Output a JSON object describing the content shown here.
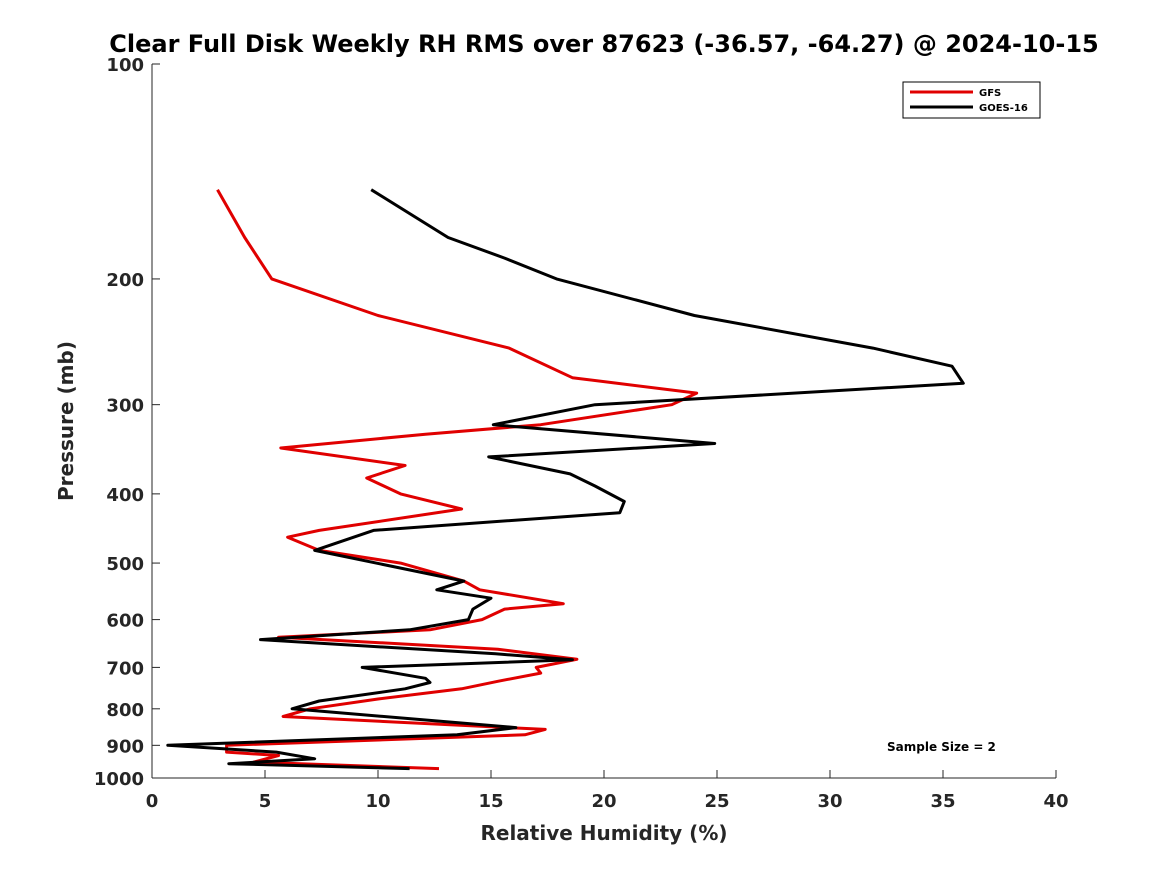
{
  "chart_data": {
    "type": "line",
    "title": "Clear Full Disk Weekly RH RMS over 87623 (-36.57, -64.27) @ 2024-10-15",
    "xlabel": "Relative Humidity (%)",
    "ylabel": "Pressure (mb)",
    "xlim": [
      0,
      40
    ],
    "ylim": [
      100,
      1000
    ],
    "y_scale": "log",
    "y_reversed": true,
    "grid": false,
    "legend_position": "top-right",
    "x_ticks": [
      0,
      5,
      10,
      15,
      20,
      25,
      30,
      35,
      40
    ],
    "y_ticks": [
      100,
      200,
      300,
      400,
      500,
      600,
      700,
      800,
      900,
      1000
    ],
    "annotation": "Sample Size = 2",
    "series": [
      {
        "name": "GFS",
        "color": "#e00000",
        "points": [
          [
            2.9,
            150
          ],
          [
            4.1,
            175
          ],
          [
            5.3,
            200
          ],
          [
            10,
            225
          ],
          [
            15.8,
            250
          ],
          [
            18.6,
            275
          ],
          [
            24.1,
            289
          ],
          [
            23.0,
            300
          ],
          [
            17.2,
            320
          ],
          [
            12.1,
            330
          ],
          [
            5.7,
            345
          ],
          [
            11.2,
            365
          ],
          [
            9.5,
            380
          ],
          [
            11.0,
            400
          ],
          [
            13.7,
            420
          ],
          [
            7.4,
            450
          ],
          [
            6.0,
            460
          ],
          [
            7.4,
            480
          ],
          [
            11.0,
            500
          ],
          [
            13.8,
            530
          ],
          [
            14.5,
            545
          ],
          [
            18.2,
            570
          ],
          [
            15.6,
            580
          ],
          [
            14.6,
            600
          ],
          [
            12.3,
            620
          ],
          [
            5.6,
            635
          ],
          [
            15.3,
            660
          ],
          [
            18.8,
            682
          ],
          [
            17.0,
            700
          ],
          [
            17.2,
            713
          ],
          [
            15.3,
            732
          ],
          [
            13.7,
            750
          ],
          [
            10.0,
            775
          ],
          [
            7.0,
            800
          ],
          [
            5.8,
            820
          ],
          [
            17.4,
            855
          ],
          [
            16.5,
            870
          ],
          [
            3.3,
            900
          ],
          [
            3.3,
            920
          ],
          [
            5.6,
            930
          ],
          [
            4.5,
            950
          ],
          [
            12.7,
            970
          ]
        ]
      },
      {
        "name": "GOES-16",
        "color": "#000000",
        "points": [
          [
            9.7,
            150
          ],
          [
            13.1,
            175
          ],
          [
            15.6,
            187
          ],
          [
            17.9,
            200
          ],
          [
            24.0,
            225
          ],
          [
            31.9,
            250
          ],
          [
            35.4,
            265
          ],
          [
            35.9,
            280
          ],
          [
            19.6,
            300
          ],
          [
            15.1,
            320
          ],
          [
            24.9,
            340
          ],
          [
            14.9,
            355
          ],
          [
            18.5,
            375
          ],
          [
            19.6,
            390
          ],
          [
            20.9,
            410
          ],
          [
            20.7,
            425
          ],
          [
            9.8,
            450
          ],
          [
            7.2,
            480
          ],
          [
            13.8,
            530
          ],
          [
            12.6,
            545
          ],
          [
            15.0,
            560
          ],
          [
            14.2,
            580
          ],
          [
            14.0,
            600
          ],
          [
            11.4,
            620
          ],
          [
            4.8,
            640
          ],
          [
            15.2,
            670
          ],
          [
            18.6,
            683
          ],
          [
            9.3,
            700
          ],
          [
            12.1,
            725
          ],
          [
            12.3,
            735
          ],
          [
            11.2,
            750
          ],
          [
            7.4,
            780
          ],
          [
            6.2,
            800
          ],
          [
            16.1,
            850
          ],
          [
            13.5,
            870
          ],
          [
            0.7,
            900
          ],
          [
            5.5,
            920
          ],
          [
            7.2,
            940
          ],
          [
            3.4,
            955
          ],
          [
            11.4,
            970
          ]
        ]
      }
    ]
  }
}
